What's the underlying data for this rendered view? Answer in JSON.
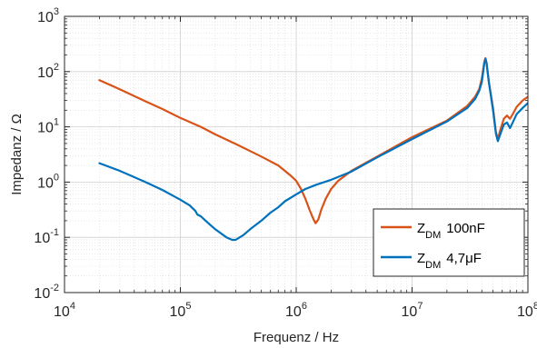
{
  "chart_data": {
    "type": "line",
    "title": "",
    "xlabel": "Frequenz / Hz",
    "ylabel": "Impedanz / Ω",
    "x_scale": "log",
    "y_scale": "log",
    "xlim": [
      10000,
      100000000
    ],
    "ylim": [
      0.01,
      1000
    ],
    "grid": "on (major and minor)",
    "legend_location": "bottom-right",
    "x_ticks": [
      {
        "base": "10",
        "exp": "4",
        "value": 10000
      },
      {
        "base": "10",
        "exp": "5",
        "value": 100000
      },
      {
        "base": "10",
        "exp": "6",
        "value": 1000000
      },
      {
        "base": "10",
        "exp": "7",
        "value": 10000000
      },
      {
        "base": "10",
        "exp": "8",
        "value": 100000000
      }
    ],
    "y_ticks": [
      {
        "base": "10",
        "exp": "-2",
        "value": 0.01
      },
      {
        "base": "10",
        "exp": "-1",
        "value": 0.1
      },
      {
        "base": "10",
        "exp": "0",
        "value": 1
      },
      {
        "base": "10",
        "exp": "1",
        "value": 10
      },
      {
        "base": "10",
        "exp": "2",
        "value": 100
      },
      {
        "base": "10",
        "exp": "3",
        "value": 1000
      }
    ],
    "series": [
      {
        "legend_main": "Z",
        "legend_sub": "DM",
        "legend_value": "100nF",
        "color": "#D95319",
        "points": [
          [
            20000,
            70
          ],
          [
            30000,
            48
          ],
          [
            50000,
            29
          ],
          [
            70000,
            21
          ],
          [
            100000,
            14.5
          ],
          [
            150000,
            10
          ],
          [
            200000,
            7.3
          ],
          [
            300000,
            4.9
          ],
          [
            500000,
            2.9
          ],
          [
            700000,
            2.0
          ],
          [
            900000,
            1.3
          ],
          [
            1000000,
            1.05
          ],
          [
            1100000,
            0.75
          ],
          [
            1200000,
            0.5
          ],
          [
            1300000,
            0.32
          ],
          [
            1400000,
            0.22
          ],
          [
            1470000,
            0.18
          ],
          [
            1550000,
            0.21
          ],
          [
            1650000,
            0.32
          ],
          [
            1800000,
            0.5
          ],
          [
            2000000,
            0.75
          ],
          [
            2300000,
            1.05
          ],
          [
            3000000,
            1.6
          ],
          [
            5000000,
            2.9
          ],
          [
            10000000,
            6.5
          ],
          [
            20000000,
            13
          ],
          [
            30000000,
            24
          ],
          [
            35000000,
            35
          ],
          [
            38000000,
            48
          ],
          [
            40000000,
            75
          ],
          [
            42000000,
            150
          ],
          [
            43000000,
            175
          ],
          [
            44000000,
            140
          ],
          [
            46000000,
            65
          ],
          [
            50000000,
            22
          ],
          [
            53000000,
            8
          ],
          [
            55000000,
            6
          ],
          [
            58000000,
            9
          ],
          [
            62000000,
            14
          ],
          [
            66000000,
            16
          ],
          [
            70000000,
            14
          ],
          [
            74000000,
            17
          ],
          [
            80000000,
            23
          ],
          [
            90000000,
            30
          ],
          [
            100000000,
            35
          ]
        ]
      },
      {
        "legend_main": "Z",
        "legend_sub": "DM",
        "legend_value": "4,7μF",
        "color": "#0072BD",
        "points": [
          [
            20000,
            2.2
          ],
          [
            30000,
            1.6
          ],
          [
            50000,
            1.0
          ],
          [
            70000,
            0.72
          ],
          [
            100000,
            0.48
          ],
          [
            120000,
            0.38
          ],
          [
            135000,
            0.3
          ],
          [
            140000,
            0.26
          ],
          [
            150000,
            0.24
          ],
          [
            180000,
            0.17
          ],
          [
            200000,
            0.14
          ],
          [
            250000,
            0.1
          ],
          [
            280000,
            0.09
          ],
          [
            300000,
            0.09
          ],
          [
            350000,
            0.11
          ],
          [
            400000,
            0.14
          ],
          [
            500000,
            0.2
          ],
          [
            600000,
            0.28
          ],
          [
            700000,
            0.35
          ],
          [
            800000,
            0.45
          ],
          [
            1000000,
            0.6
          ],
          [
            1200000,
            0.75
          ],
          [
            1500000,
            0.9
          ],
          [
            2000000,
            1.1
          ],
          [
            3000000,
            1.55
          ],
          [
            5000000,
            2.8
          ],
          [
            10000000,
            6.0
          ],
          [
            20000000,
            12.5
          ],
          [
            30000000,
            22
          ],
          [
            35000000,
            32
          ],
          [
            38000000,
            45
          ],
          [
            40000000,
            65
          ],
          [
            42000000,
            140
          ],
          [
            43000000,
            170
          ],
          [
            44000000,
            145
          ],
          [
            46000000,
            65
          ],
          [
            50000000,
            20
          ],
          [
            53000000,
            7.5
          ],
          [
            55000000,
            5.5
          ],
          [
            58000000,
            7.5
          ],
          [
            62000000,
            11
          ],
          [
            66000000,
            12
          ],
          [
            70000000,
            9.5
          ],
          [
            74000000,
            12
          ],
          [
            80000000,
            17
          ],
          [
            90000000,
            22
          ],
          [
            100000000,
            27
          ]
        ]
      }
    ]
  }
}
